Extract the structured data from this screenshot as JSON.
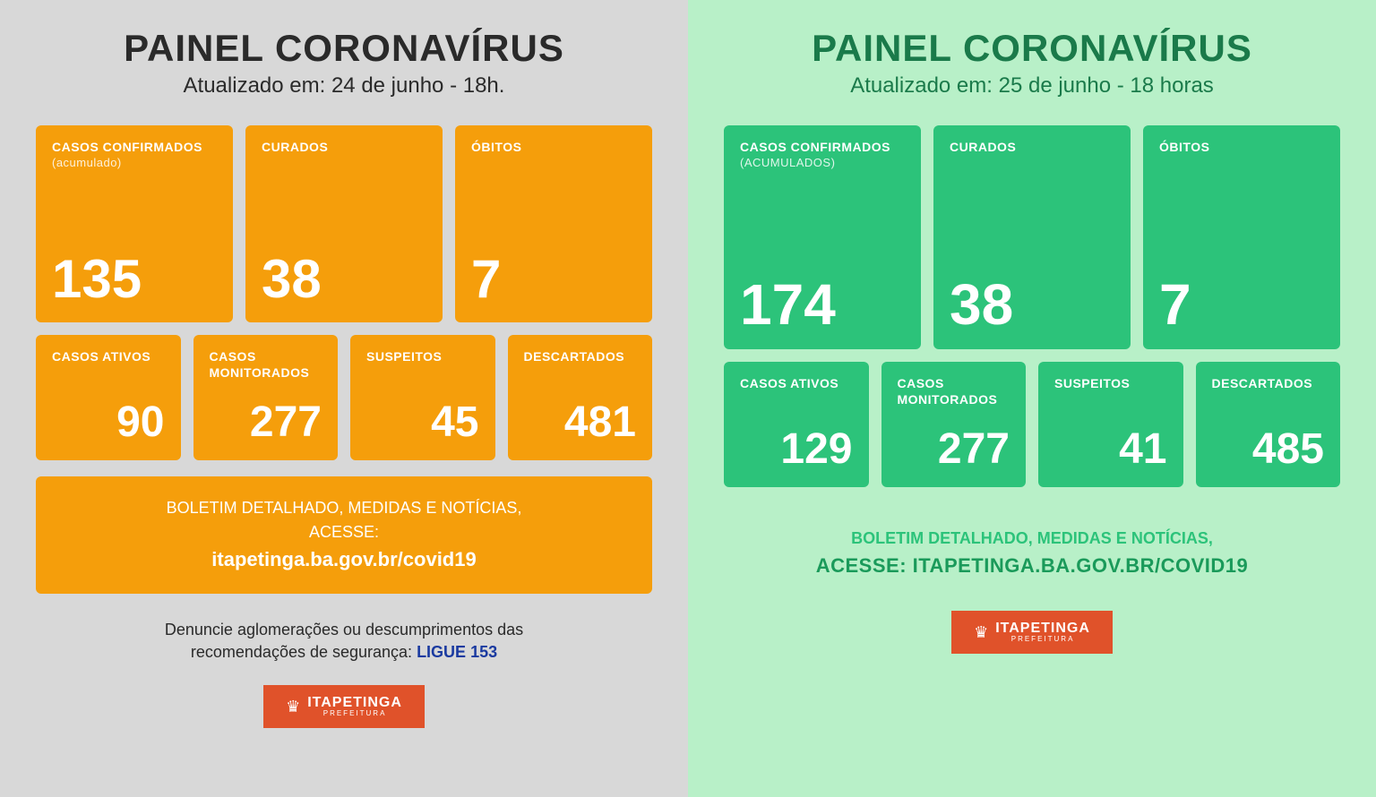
{
  "left": {
    "title": "PAINEL CORONAVÍRUS",
    "subtitle": "Atualizado em: 24 de junho - 18h.",
    "background_color": "#d8d8d8",
    "card_color": "#f59e0b",
    "text_color": "#2a2a2a",
    "row1": [
      {
        "label": "CASOS CONFIRMADOS",
        "sub": "(acumulado)",
        "value": "135"
      },
      {
        "label": "CURADOS",
        "sub": "",
        "value": "38"
      },
      {
        "label": "ÓBITOS",
        "sub": "",
        "value": "7"
      }
    ],
    "row2": [
      {
        "label": "CASOS ATIVOS",
        "value": "90"
      },
      {
        "label": "CASOS MONITORADOS",
        "value": "277"
      },
      {
        "label": "SUSPEITOS",
        "value": "45"
      },
      {
        "label": "DESCARTADOS",
        "value": "481"
      }
    ],
    "info_line1": "BOLETIM DETALHADO, MEDIDAS E NOTÍCIAS,",
    "info_line2": "ACESSE:",
    "info_url": "itapetinga.ba.gov.br/covid19",
    "denounce_line1": "Denuncie aglomerações ou descumprimentos das",
    "denounce_line2": "recomendações de segurança: ",
    "denounce_call": "LIGUE 153",
    "logo_main": "ITAPETINGA",
    "logo_sub": "PREFEITURA",
    "logo_bg": "#e0522a"
  },
  "right": {
    "title": "PAINEL CORONAVÍRUS",
    "subtitle": "Atualizado em: 25 de junho - 18 horas",
    "background_color": "#b8f0c8",
    "card_color": "#2cc37a",
    "text_color": "#1a7a4a",
    "row1": [
      {
        "label": "CASOS CONFIRMADOS",
        "sub": "(ACUMULADOS)",
        "value": "174"
      },
      {
        "label": "CURADOS",
        "sub": "",
        "value": "38"
      },
      {
        "label": "ÓBITOS",
        "sub": "",
        "value": "7"
      }
    ],
    "row2": [
      {
        "label": "CASOS ATIVOS",
        "value": "129"
      },
      {
        "label": "CASOS MONITORADOS",
        "value": "277"
      },
      {
        "label": "SUSPEITOS",
        "value": "41"
      },
      {
        "label": "DESCARTADOS",
        "value": "485"
      }
    ],
    "info_line1": "BOLETIM DETALHADO, MEDIDAS E NOTÍCIAS,",
    "info_line2_prefix": "ACESSE: ",
    "info_url": "ITAPETINGA.BA.GOV.BR/COVID19",
    "logo_main": "ITAPETINGA",
    "logo_sub": "PREFEITURA",
    "logo_bg": "#e0522a"
  }
}
